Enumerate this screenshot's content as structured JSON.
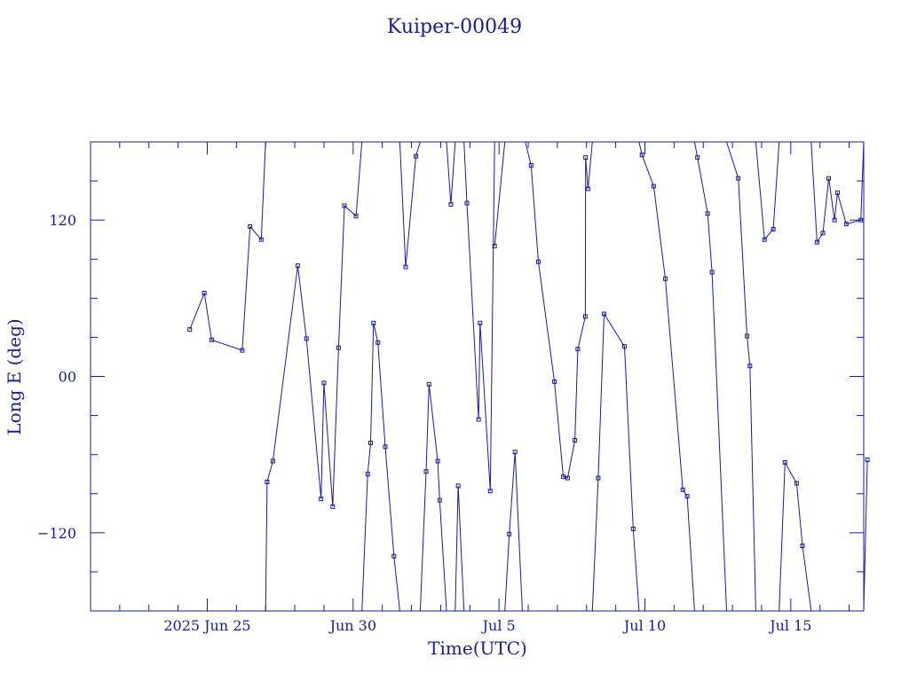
{
  "chart_data": {
    "type": "line",
    "title": "Kuiper-00049",
    "xlabel": "Time(UTC)",
    "ylabel": "Long E (deg)",
    "xlim": [
      "2025-06-21T00:00",
      "2025-07-17T12:00"
    ],
    "ylim": [
      -180,
      180
    ],
    "x_tick_labels": [
      {
        "label": "2025 Jun 25",
        "date": "2025-06-25"
      },
      {
        "label": "Jun 30",
        "date": "2025-06-30"
      },
      {
        "label": "Jul  5",
        "date": "2025-07-05"
      },
      {
        "label": "Jul 10",
        "date": "2025-07-10"
      },
      {
        "label": "Jul 15",
        "date": "2025-07-15"
      }
    ],
    "y_tick_labels": [
      {
        "label": "120",
        "value": 120
      },
      {
        "label": "00",
        "value": 0
      },
      {
        "label": "−120",
        "value": -120
      }
    ],
    "marker": "square",
    "grid": false,
    "color": "#1a1a9c",
    "segments": [
      [
        [
          "2025-06-24T09:36",
          36
        ],
        [
          "2025-06-24T21:36",
          64
        ],
        [
          "2025-06-25T03:36",
          28
        ],
        [
          "2025-06-26T04:48",
          20
        ],
        [
          "2025-06-26T11:12",
          115
        ],
        [
          "2025-06-26T20:24",
          105
        ],
        [
          "2025-06-27T00:00",
          180
        ]
      ],
      [
        [
          "2025-06-27T00:00",
          -180
        ],
        [
          "2025-06-27T01:12",
          -81
        ],
        [
          "2025-06-27T06:00",
          -65
        ],
        [
          "2025-06-28T02:24",
          85
        ],
        [
          "2025-06-28T09:36",
          29
        ],
        [
          "2025-06-28T21:36",
          -94
        ],
        [
          "2025-06-29T00:00",
          -5
        ],
        [
          "2025-06-29T07:12",
          -100
        ],
        [
          "2025-06-29T12:00",
          22
        ],
        [
          "2025-06-29T16:48",
          131
        ],
        [
          "2025-06-30T02:24",
          123
        ],
        [
          "2025-06-30T07:12",
          180
        ]
      ],
      [
        [
          "2025-06-30T07:12",
          -180
        ],
        [
          "2025-06-30T12:00",
          -75
        ],
        [
          "2025-06-30T14:24",
          -51
        ],
        [
          "2025-06-30T16:48",
          41
        ],
        [
          "2025-06-30T20:24",
          26
        ],
        [
          "2025-07-01T02:24",
          -54
        ],
        [
          "2025-07-01T09:36",
          -138
        ],
        [
          "2025-07-01T14:24",
          -180
        ]
      ],
      [
        [
          "2025-07-01T14:24",
          180
        ],
        [
          "2025-07-01T19:12",
          84
        ],
        [
          "2025-07-02T03:36",
          169
        ],
        [
          "2025-07-02T07:12",
          180
        ]
      ],
      [
        [
          "2025-07-02T07:12",
          -180
        ],
        [
          "2025-07-02T12:00",
          -73
        ],
        [
          "2025-07-02T14:24",
          -6
        ],
        [
          "2025-07-02T21:36",
          -65
        ],
        [
          "2025-07-02T23:12",
          -95
        ],
        [
          "2025-07-03T04:48",
          -180
        ]
      ],
      [
        [
          "2025-07-03T04:48",
          180
        ],
        [
          "2025-07-03T08:24",
          132
        ],
        [
          "2025-07-03T12:00",
          180
        ]
      ],
      [
        [
          "2025-07-03T12:00",
          -180
        ],
        [
          "2025-07-03T14:24",
          -84
        ],
        [
          "2025-07-03T19:12",
          -180
        ]
      ],
      [
        [
          "2025-07-03T19:12",
          180
        ],
        [
          "2025-07-03T21:36",
          133
        ],
        [
          "2025-07-04T07:12",
          -33
        ],
        [
          "2025-07-04T08:24",
          41
        ],
        [
          "2025-07-04T16:48",
          -88
        ],
        [
          "2025-07-04T20:24",
          180
        ]
      ],
      [
        [
          "2025-07-04T20:24",
          100
        ],
        [
          "2025-07-05T04:48",
          180
        ]
      ],
      [
        [
          "2025-07-05T04:48",
          -180
        ],
        [
          "2025-07-05T08:24",
          -121
        ],
        [
          "2025-07-05T13:12",
          -58
        ],
        [
          "2025-07-05T19:12",
          -180
        ]
      ],
      [
        [
          "2025-07-05T19:12",
          180
        ],
        [
          "2025-07-05T21:36",
          180
        ],
        [
          "2025-07-06T02:24",
          162
        ],
        [
          "2025-07-06T08:24",
          88
        ],
        [
          "2025-07-06T21:36",
          -4
        ],
        [
          "2025-07-07T04:48",
          -77
        ],
        [
          "2025-07-07T08:24",
          -78
        ],
        [
          "2025-07-07T14:24",
          -49
        ],
        [
          "2025-07-07T16:48",
          21
        ],
        [
          "2025-07-07T23:00",
          46
        ],
        [
          "2025-07-07T23:12",
          168
        ],
        [
          "2025-07-08T01:12",
          144
        ],
        [
          "2025-07-08T04:48",
          180
        ]
      ],
      [
        [
          "2025-07-08T04:48",
          -180
        ],
        [
          "2025-07-08T09:36",
          -78
        ],
        [
          "2025-07-08T14:24",
          48
        ],
        [
          "2025-07-09T07:12",
          23
        ],
        [
          "2025-07-09T14:24",
          -117
        ],
        [
          "2025-07-09T19:12",
          -180
        ]
      ],
      [
        [
          "2025-07-09T19:12",
          180
        ],
        [
          "2025-07-09T21:36",
          170
        ],
        [
          "2025-07-10T07:12",
          146
        ],
        [
          "2025-07-10T16:48",
          75
        ],
        [
          "2025-07-11T07:12",
          -87
        ],
        [
          "2025-07-11T10:48",
          -92
        ],
        [
          "2025-07-11T16:48",
          -180
        ]
      ],
      [
        [
          "2025-07-11T16:48",
          180
        ],
        [
          "2025-07-11T19:12",
          168
        ],
        [
          "2025-07-12T03:36",
          125
        ],
        [
          "2025-07-12T07:12",
          80
        ],
        [
          "2025-07-12T19:12",
          -180
        ]
      ],
      [
        [
          "2025-07-12T19:12",
          180
        ],
        [
          "2025-07-13T04:48",
          152
        ],
        [
          "2025-07-13T12:00",
          31
        ],
        [
          "2025-07-13T14:24",
          8
        ],
        [
          "2025-07-13T19:12",
          -180
        ]
      ],
      [
        [
          "2025-07-13T19:12",
          180
        ],
        [
          "2025-07-14T02:24",
          105
        ],
        [
          "2025-07-14T09:36",
          113
        ],
        [
          "2025-07-14T14:24",
          180
        ]
      ],
      [
        [
          "2025-07-14T14:24",
          -180
        ],
        [
          "2025-07-14T19:12",
          -66
        ],
        [
          "2025-07-15T04:48",
          -82
        ],
        [
          "2025-07-15T09:36",
          -130
        ],
        [
          "2025-07-15T16:48",
          -180
        ]
      ],
      [
        [
          "2025-07-15T16:48",
          180
        ],
        [
          "2025-07-15T21:36",
          103
        ],
        [
          "2025-07-16T02:24",
          110
        ],
        [
          "2025-07-16T07:12",
          152
        ],
        [
          "2025-07-16T12:00",
          120
        ],
        [
          "2025-07-16T14:24",
          141
        ],
        [
          "2025-07-16T21:36",
          117
        ],
        [
          "2025-07-17T09:36",
          120
        ],
        [
          "2025-07-17T12:00",
          180
        ]
      ],
      [
        [
          "2025-07-17T12:00",
          -180
        ],
        [
          "2025-07-17T15:00",
          -64
        ]
      ]
    ]
  }
}
